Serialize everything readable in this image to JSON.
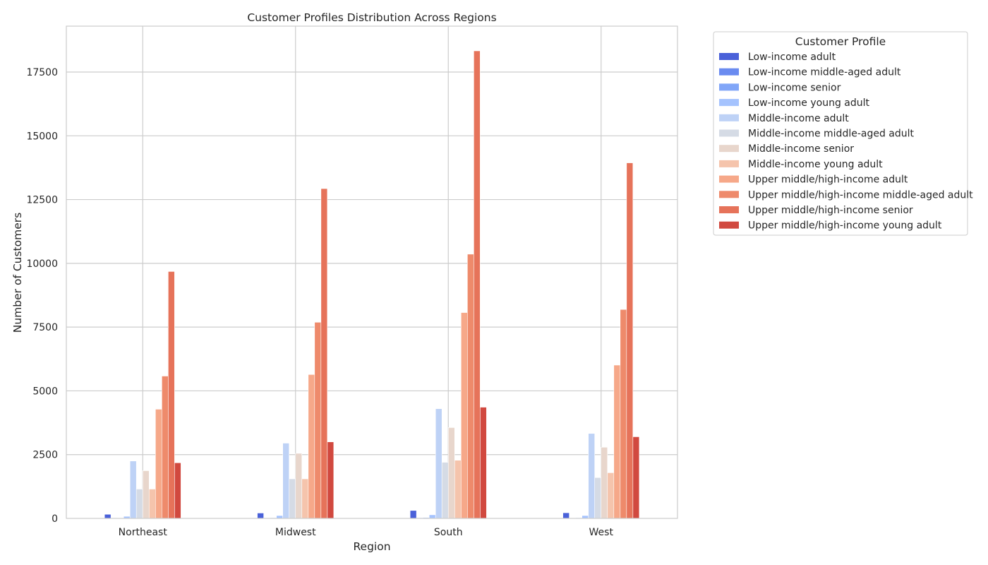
{
  "chart_data": {
    "type": "bar",
    "title": "Customer Profiles Distribution Across Regions",
    "xlabel": "Region",
    "ylabel": "Number of Customers",
    "categories": [
      "Northeast",
      "Midwest",
      "South",
      "West"
    ],
    "ylim": [
      0,
      19300
    ],
    "yticks": [
      0,
      2500,
      5000,
      7500,
      10000,
      12500,
      15000,
      17500
    ],
    "grid": true,
    "legend": {
      "title": "Customer Profile",
      "position": "outside-top-right"
    },
    "series": [
      {
        "name": "Low-income adult",
        "color": "#4a61d9",
        "values": [
          160,
          210,
          310,
          220
        ]
      },
      {
        "name": "Low-income middle-aged adult",
        "color": "#6a8bf0",
        "values": [
          15,
          20,
          25,
          20
        ]
      },
      {
        "name": "Low-income senior",
        "color": "#81a6f8",
        "values": [
          20,
          25,
          30,
          25
        ]
      },
      {
        "name": "Low-income young adult",
        "color": "#a5c3fe",
        "values": [
          80,
          110,
          140,
          110
        ]
      },
      {
        "name": "Middle-income adult",
        "color": "#bed2f6",
        "values": [
          2250,
          2950,
          4300,
          3330
        ]
      },
      {
        "name": "Middle-income middle-aged adult",
        "color": "#d5dbe5",
        "values": [
          1150,
          1550,
          2200,
          1600
        ]
      },
      {
        "name": "Middle-income senior",
        "color": "#e8d6cc",
        "values": [
          1870,
          2550,
          3560,
          2790
        ]
      },
      {
        "name": "Middle-income young adult",
        "color": "#f5c4ac",
        "values": [
          1150,
          1550,
          2280,
          1790
        ]
      },
      {
        "name": "Upper middle/high-income adult",
        "color": "#f6a889",
        "values": [
          4280,
          5640,
          8070,
          6010
        ]
      },
      {
        "name": "Upper middle/high-income middle-aged adult",
        "color": "#ee8a6b",
        "values": [
          5580,
          7690,
          10360,
          8190
        ]
      },
      {
        "name": "Upper middle/high-income senior",
        "color": "#e6735a",
        "values": [
          9680,
          12930,
          18330,
          13940
        ]
      },
      {
        "name": "Upper middle/high-income young adult",
        "color": "#d1493f",
        "values": [
          2180,
          3000,
          4360,
          3200
        ]
      }
    ]
  }
}
